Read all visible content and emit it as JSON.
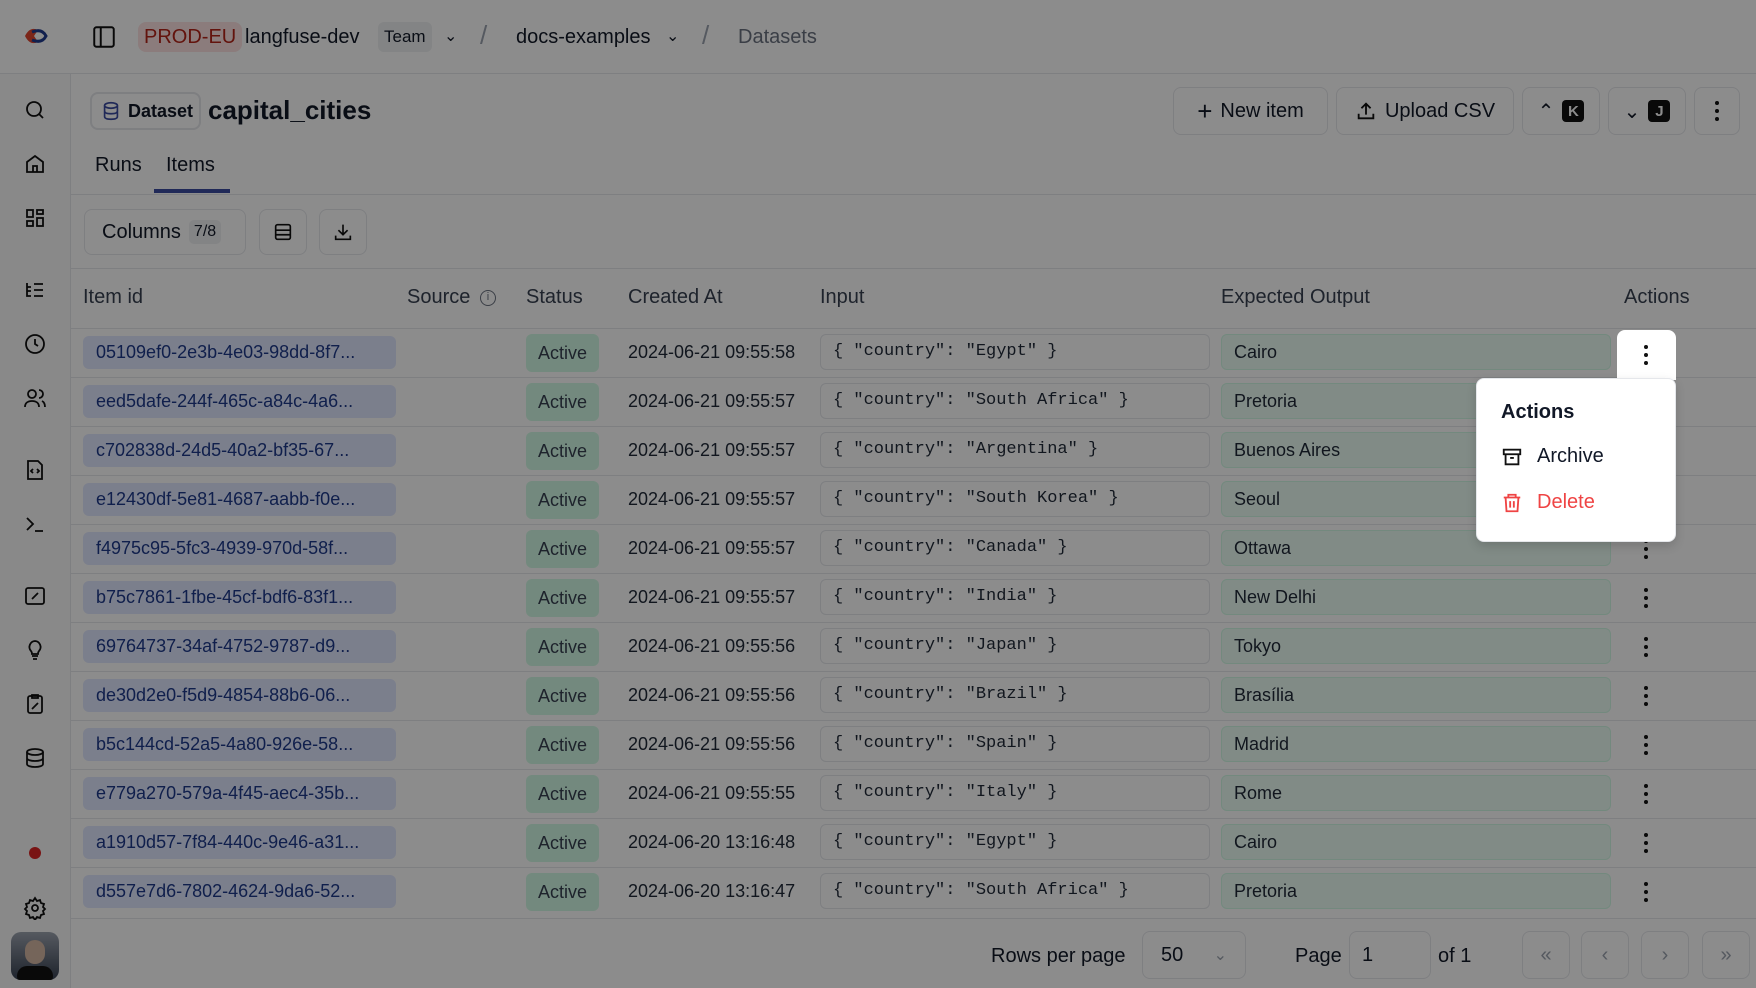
{
  "topbar": {
    "environment": "PROD-EU",
    "organization": "langfuse-dev",
    "plan_badge": "Team",
    "project": "docs-examples",
    "page": "Datasets"
  },
  "header": {
    "badge": "Dataset",
    "title": "capital_cities",
    "new_item": "New item",
    "upload_csv": "Upload CSV",
    "prev_key": "K",
    "next_key": "J"
  },
  "tabs": [
    {
      "label": "Runs"
    },
    {
      "label": "Items",
      "active": true
    }
  ],
  "toolbar": {
    "columns_label": "Columns",
    "columns_count": "7/8"
  },
  "table": {
    "headers": [
      "Item id",
      "Source",
      "Status",
      "Created At",
      "Input",
      "Expected Output",
      "Actions"
    ],
    "rows": [
      {
        "id": "05109ef0-2e3b-4e03-98dd-8f7...",
        "status": "Active",
        "created": "2024-06-21 09:55:58",
        "input": "{ \"country\": \"Egypt\" }",
        "output": "Cairo"
      },
      {
        "id": "eed5dafe-244f-465c-a84c-4a6...",
        "status": "Active",
        "created": "2024-06-21 09:55:57",
        "input": "{ \"country\": \"South Africa\" }",
        "output": "Pretoria"
      },
      {
        "id": "c702838d-24d5-40a2-bf35-67...",
        "status": "Active",
        "created": "2024-06-21 09:55:57",
        "input": "{ \"country\": \"Argentina\" }",
        "output": "Buenos Aires"
      },
      {
        "id": "e12430df-5e81-4687-aabb-f0e...",
        "status": "Active",
        "created": "2024-06-21 09:55:57",
        "input": "{ \"country\": \"South Korea\" }",
        "output": "Seoul"
      },
      {
        "id": "f4975c95-5fc3-4939-970d-58f...",
        "status": "Active",
        "created": "2024-06-21 09:55:57",
        "input": "{ \"country\": \"Canada\" }",
        "output": "Ottawa"
      },
      {
        "id": "b75c7861-1fbe-45cf-bdf6-83f1...",
        "status": "Active",
        "created": "2024-06-21 09:55:57",
        "input": "{ \"country\": \"India\" }",
        "output": "New Delhi"
      },
      {
        "id": "69764737-34af-4752-9787-d9...",
        "status": "Active",
        "created": "2024-06-21 09:55:56",
        "input": "{ \"country\": \"Japan\" }",
        "output": "Tokyo"
      },
      {
        "id": "de30d2e0-f5d9-4854-88b6-06...",
        "status": "Active",
        "created": "2024-06-21 09:55:56",
        "input": "{ \"country\": \"Brazil\" }",
        "output": "Brasília"
      },
      {
        "id": "b5c144cd-52a5-4a80-926e-58...",
        "status": "Active",
        "created": "2024-06-21 09:55:56",
        "input": "{ \"country\": \"Spain\" }",
        "output": "Madrid"
      },
      {
        "id": "e779a270-579a-4f45-aec4-35b...",
        "status": "Active",
        "created": "2024-06-21 09:55:55",
        "input": "{ \"country\": \"Italy\" }",
        "output": "Rome"
      },
      {
        "id": "a1910d57-7f84-440c-9e46-a31...",
        "status": "Active",
        "created": "2024-06-20 13:16:48",
        "input": "{ \"country\": \"Egypt\" }",
        "output": "Cairo"
      },
      {
        "id": "d557e7d6-7802-4624-9da6-52...",
        "status": "Active",
        "created": "2024-06-20 13:16:47",
        "input": "{ \"country\": \"South Africa\" }",
        "output": "Pretoria"
      }
    ]
  },
  "pagination": {
    "rows_per_page_label": "Rows per page",
    "rows_per_page": "50",
    "page_label": "Page",
    "page": "1",
    "of_label": "of 1"
  },
  "menu": {
    "title": "Actions",
    "archive": "Archive",
    "delete": "Delete",
    "delete_color": "#ef4444"
  },
  "colors": {
    "accent": "#3b4ba0",
    "overlay": "rgba(0,0,0,0.45)"
  }
}
